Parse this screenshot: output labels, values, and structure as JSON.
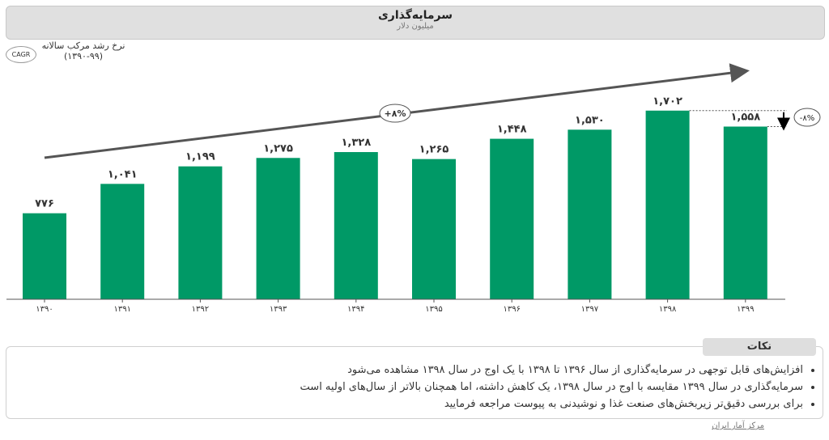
{
  "header": {
    "title": "سرمایه‌گذاری",
    "subtitle": "میلیون دلار"
  },
  "cagr": {
    "badge": "CAGR",
    "label": "نرخ رشد مرکب سالانه",
    "period": "(۱۳۹۰-۹۹)",
    "value": "+۸%"
  },
  "change": {
    "value": "-۸%"
  },
  "chart_data": {
    "type": "bar",
    "categories": [
      "۱۳۹۰",
      "۱۳۹۱",
      "۱۳۹۲",
      "۱۳۹۳",
      "۱۳۹۴",
      "۱۳۹۵",
      "۱۳۹۶",
      "۱۳۹۷",
      "۱۳۹۸",
      "۱۳۹۹"
    ],
    "values": [
      776,
      1041,
      1199,
      1275,
      1328,
      1265,
      1448,
      1530,
      1702,
      1558
    ],
    "data_labels": [
      "۷۷۶",
      "۱,۰۴۱",
      "۱,۱۹۹",
      "۱,۲۷۵",
      "۱,۳۲۸",
      "۱,۲۶۵",
      "۱,۴۴۸",
      "۱,۵۳۰",
      "۱,۷۰۲",
      "۱,۵۵۸"
    ],
    "ylim": [
      0,
      2700
    ],
    "grid": false,
    "bar_color": "#009966",
    "title": "سرمایه‌گذاری",
    "ylabel": "میلیون دلار",
    "xlabel": ""
  },
  "notes": {
    "title": "نکات",
    "items": [
      "افزایش‌های قابل توجهی در سرمایه‌گذاری از سال ۱۳۹۶ تا ۱۳۹۸ با یک اوج در سال ۱۳۹۸ مشاهده می‌شود",
      "سرمایه‌گذاری در سال ۱۳۹۹ مقایسه با اوج در سال ۱۳۹۸، یک کاهش داشته، اما همچنان بالاتر از سال‌های اولیه است",
      "برای بررسی دقیق‌تر زیربخش‌های صنعت غذا و نوشیدنی به پیوست مراجعه فرمایید"
    ]
  },
  "source": "مرکز آمار ایران"
}
